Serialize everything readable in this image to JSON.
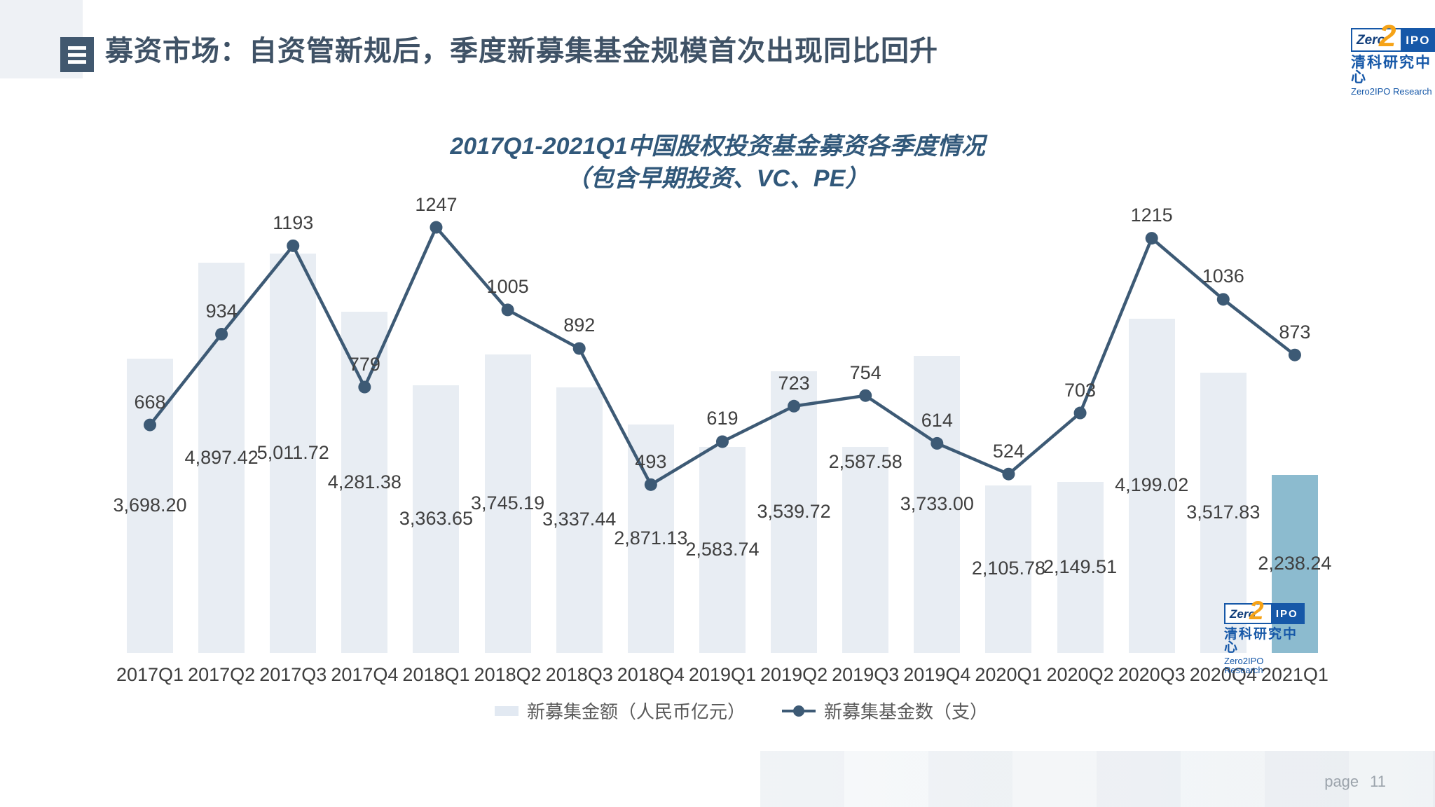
{
  "header": {
    "title": "募资市场：自资管新规后，季度新募集基金规模首次出现同比回升"
  },
  "brand": {
    "logo_zero": "Zero",
    "logo_two": "2",
    "logo_ipo": "IPO",
    "name_cn": "清科研究中心",
    "name_en": "Zero2IPO Research"
  },
  "chart": {
    "title_line1": "2017Q1-2021Q1中国股权投资基金募资各季度情况",
    "title_line2": "（包含早期投资、VC、PE）"
  },
  "chart_data": {
    "type": "combo",
    "categories": [
      "2017Q1",
      "2017Q2",
      "2017Q3",
      "2017Q4",
      "2018Q1",
      "2018Q2",
      "2018Q3",
      "2018Q4",
      "2019Q1",
      "2019Q2",
      "2019Q3",
      "2019Q4",
      "2020Q1",
      "2020Q2",
      "2020Q3",
      "2020Q4",
      "2021Q1"
    ],
    "series": [
      {
        "name": "新募集金额（人民币亿元）",
        "type": "bar",
        "axis": "primary",
        "values": [
          3698.2,
          4897.42,
          5011.72,
          4281.38,
          3363.65,
          3745.19,
          3337.44,
          2871.13,
          2583.74,
          3539.72,
          2587.58,
          3733.0,
          2105.78,
          2149.51,
          4199.02,
          3517.83,
          2238.24
        ],
        "labels": [
          "3,698.20",
          "4,897.42",
          "5,011.72",
          "4,281.38",
          "3,363.65",
          "3,745.19",
          "3,337.44",
          "2,871.13",
          "2,583.74",
          "3,539.72",
          "2,587.58",
          "3,733.00",
          "2,105.78",
          "2,149.51",
          "4,199.02",
          "3,517.83",
          "2,238.24"
        ]
      },
      {
        "name": "新募集基金数（支）",
        "type": "line",
        "axis": "secondary",
        "values": [
          668,
          934,
          1193,
          779,
          1247,
          1005,
          892,
          493,
          619,
          723,
          754,
          614,
          524,
          703,
          1215,
          1036,
          873
        ],
        "labels": [
          "668",
          "934",
          "1193",
          "779",
          "1247",
          "1005",
          "892",
          "493",
          "619",
          "723",
          "754",
          "614",
          "524",
          "703",
          "1215",
          "1036",
          "873"
        ]
      }
    ],
    "primary_ylim": [
      0,
      6000
    ],
    "secondary_ylim": [
      0,
      1400
    ],
    "grid": false,
    "legend_position": "bottom",
    "highlight_index": 16,
    "colors": {
      "bar": "#e8edf3",
      "bar_highlight": "#8cbbcf",
      "line": "#3d5a75",
      "data_label": "#3f3f3f"
    },
    "bar_label_dy": {
      "10": -125
    }
  },
  "footer": {
    "page_label": "page",
    "page_number": "11"
  }
}
